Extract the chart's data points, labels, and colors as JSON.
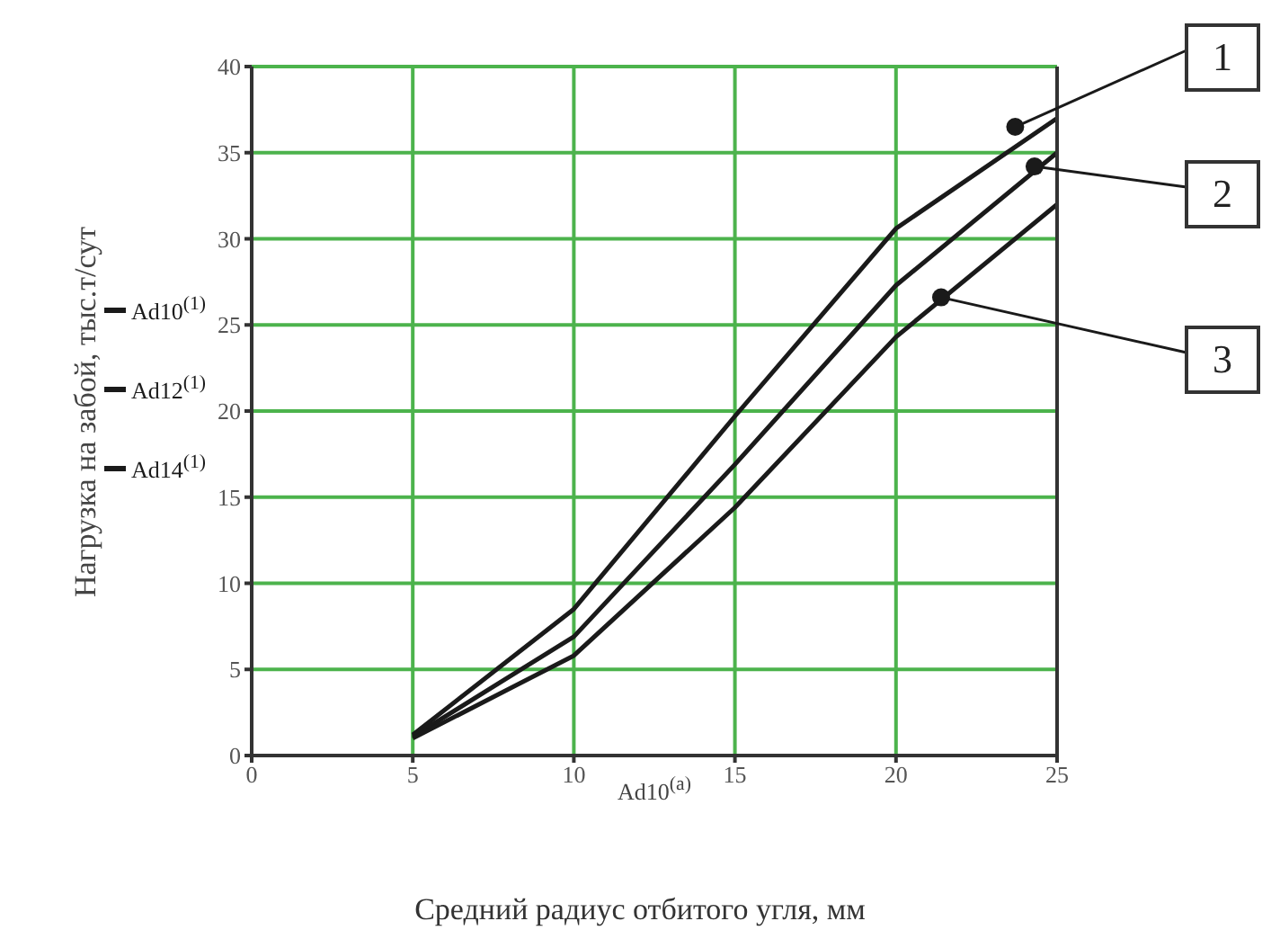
{
  "chart_data": {
    "type": "line",
    "xlabel": "Средний радиус отбитого угля, мм",
    "ylabel": "Нагрузка на забой, тыс.т/сут",
    "x": [
      5,
      10,
      15,
      20,
      25
    ],
    "series": [
      {
        "name": "Ad10$^{(1)}$",
        "color": "#1a1a1a",
        "values": [
          1.2,
          8.5,
          19.7,
          30.6,
          37.0
        ]
      },
      {
        "name": "Ad12$^{(1)}$",
        "color": "#1a1a1a",
        "values": [
          1.1,
          6.9,
          16.9,
          27.3,
          35.0
        ]
      },
      {
        "name": "Ad14$^{(1)}$",
        "color": "#1a1a1a",
        "values": [
          1.0,
          5.8,
          14.4,
          24.3,
          32.0
        ]
      }
    ],
    "annotations": [
      "Ad10$^{(a)}$",
      {
        "text": "1",
        "x": 23.7,
        "y": 36.5
      },
      {
        "text": "2",
        "x": 24.3,
        "y": 34.2
      },
      {
        "text": "3",
        "x": 21.4,
        "y": 26.6
      }
    ],
    "xlim": [
      0,
      25
    ],
    "xticks": [
      0,
      5,
      10,
      15,
      20,
      25
    ],
    "ylim": [
      0,
      40
    ],
    "yticks": [
      0,
      5,
      10,
      15,
      20,
      25,
      30,
      35,
      40
    ],
    "grid": true,
    "legend": "left",
    "marker": "none",
    "line_style": "solid"
  }
}
